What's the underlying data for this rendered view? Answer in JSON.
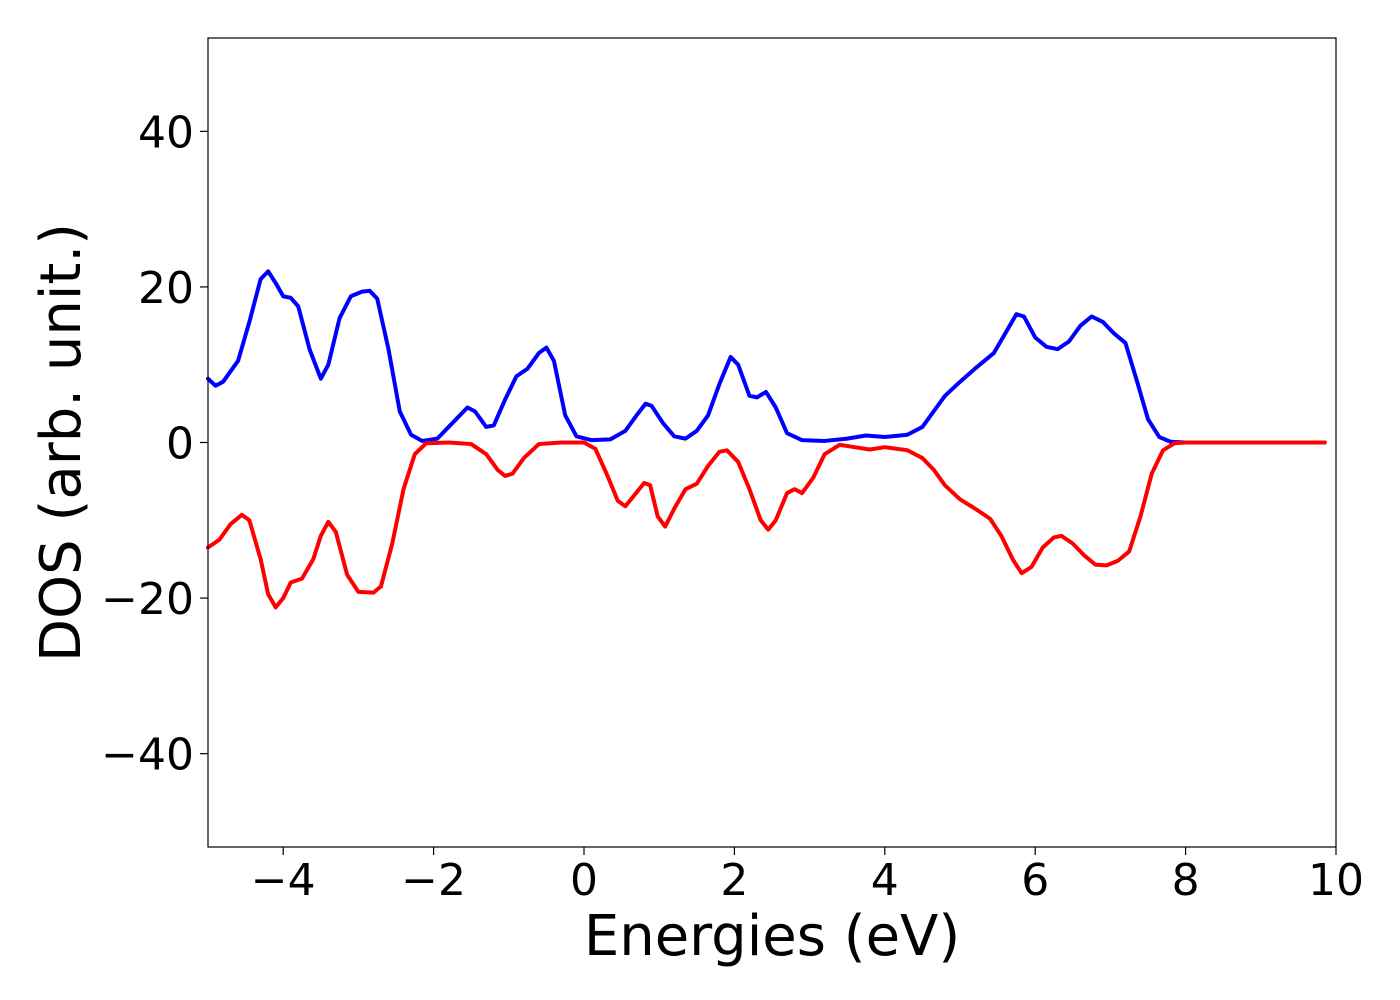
{
  "chart_data": {
    "type": "line",
    "xlabel": "Energies (eV)",
    "ylabel": "DOS (arb. unit.)",
    "xlim": [
      -5,
      10
    ],
    "ylim": [
      -52,
      52
    ],
    "x_ticks": [
      -4,
      -2,
      0,
      2,
      4,
      6,
      8,
      10
    ],
    "y_ticks": [
      -40,
      -20,
      0,
      20,
      40
    ],
    "x_tick_labels": [
      "−4",
      "−2",
      "0",
      "2",
      "4",
      "6",
      "8",
      "10"
    ],
    "y_tick_labels": [
      "−40",
      "−20",
      "0",
      "20",
      "40"
    ],
    "grid": false,
    "legend": "none",
    "series": [
      {
        "color": "#0000ff",
        "points": [
          [
            -5.0,
            8.2
          ],
          [
            -4.9,
            7.3
          ],
          [
            -4.8,
            7.8
          ],
          [
            -4.6,
            10.5
          ],
          [
            -4.45,
            15.5
          ],
          [
            -4.3,
            21.0
          ],
          [
            -4.2,
            22.0
          ],
          [
            -4.1,
            20.5
          ],
          [
            -4.0,
            18.8
          ],
          [
            -3.9,
            18.6
          ],
          [
            -3.8,
            17.5
          ],
          [
            -3.65,
            12.0
          ],
          [
            -3.5,
            8.2
          ],
          [
            -3.4,
            10.0
          ],
          [
            -3.25,
            16.0
          ],
          [
            -3.1,
            18.8
          ],
          [
            -2.95,
            19.4
          ],
          [
            -2.85,
            19.5
          ],
          [
            -2.75,
            18.5
          ],
          [
            -2.6,
            12.0
          ],
          [
            -2.45,
            4.0
          ],
          [
            -2.3,
            1.0
          ],
          [
            -2.15,
            0.2
          ],
          [
            -1.95,
            0.5
          ],
          [
            -1.75,
            2.5
          ],
          [
            -1.55,
            4.5
          ],
          [
            -1.45,
            4.0
          ],
          [
            -1.3,
            2.0
          ],
          [
            -1.2,
            2.2
          ],
          [
            -1.05,
            5.5
          ],
          [
            -0.9,
            8.5
          ],
          [
            -0.75,
            9.5
          ],
          [
            -0.6,
            11.5
          ],
          [
            -0.5,
            12.2
          ],
          [
            -0.4,
            10.5
          ],
          [
            -0.25,
            3.5
          ],
          [
            -0.1,
            0.8
          ],
          [
            0.1,
            0.3
          ],
          [
            0.35,
            0.4
          ],
          [
            0.55,
            1.5
          ],
          [
            0.7,
            3.5
          ],
          [
            0.82,
            5.0
          ],
          [
            0.9,
            4.7
          ],
          [
            1.05,
            2.5
          ],
          [
            1.2,
            0.8
          ],
          [
            1.35,
            0.5
          ],
          [
            1.5,
            1.5
          ],
          [
            1.65,
            3.5
          ],
          [
            1.8,
            7.5
          ],
          [
            1.95,
            11.0
          ],
          [
            2.05,
            10.0
          ],
          [
            2.2,
            6.0
          ],
          [
            2.3,
            5.8
          ],
          [
            2.42,
            6.5
          ],
          [
            2.55,
            4.5
          ],
          [
            2.7,
            1.2
          ],
          [
            2.9,
            0.3
          ],
          [
            3.2,
            0.2
          ],
          [
            3.5,
            0.5
          ],
          [
            3.75,
            0.9
          ],
          [
            4.0,
            0.7
          ],
          [
            4.3,
            1.0
          ],
          [
            4.5,
            2.0
          ],
          [
            4.65,
            4.0
          ],
          [
            4.8,
            6.0
          ],
          [
            5.0,
            7.8
          ],
          [
            5.2,
            9.5
          ],
          [
            5.45,
            11.5
          ],
          [
            5.6,
            14.0
          ],
          [
            5.75,
            16.5
          ],
          [
            5.85,
            16.2
          ],
          [
            6.0,
            13.5
          ],
          [
            6.15,
            12.3
          ],
          [
            6.3,
            12.0
          ],
          [
            6.45,
            13.0
          ],
          [
            6.6,
            15.0
          ],
          [
            6.75,
            16.2
          ],
          [
            6.9,
            15.5
          ],
          [
            7.05,
            14.0
          ],
          [
            7.2,
            12.8
          ],
          [
            7.35,
            8.0
          ],
          [
            7.5,
            3.0
          ],
          [
            7.65,
            0.7
          ],
          [
            7.8,
            0.1
          ],
          [
            8.0,
            0.0
          ],
          [
            9.0,
            0.0
          ],
          [
            9.85,
            0.0
          ]
        ]
      },
      {
        "color": "#ff0000",
        "points": [
          [
            -5.0,
            -13.5
          ],
          [
            -4.85,
            -12.5
          ],
          [
            -4.7,
            -10.5
          ],
          [
            -4.55,
            -9.3
          ],
          [
            -4.45,
            -10.0
          ],
          [
            -4.3,
            -15.0
          ],
          [
            -4.2,
            -19.5
          ],
          [
            -4.1,
            -21.2
          ],
          [
            -4.0,
            -20.0
          ],
          [
            -3.9,
            -18.0
          ],
          [
            -3.75,
            -17.5
          ],
          [
            -3.6,
            -15.0
          ],
          [
            -3.5,
            -12.0
          ],
          [
            -3.4,
            -10.2
          ],
          [
            -3.3,
            -11.5
          ],
          [
            -3.15,
            -17.0
          ],
          [
            -3.0,
            -19.2
          ],
          [
            -2.8,
            -19.3
          ],
          [
            -2.7,
            -18.5
          ],
          [
            -2.55,
            -13.0
          ],
          [
            -2.4,
            -6.0
          ],
          [
            -2.25,
            -1.5
          ],
          [
            -2.1,
            -0.1
          ],
          [
            -1.8,
            0.0
          ],
          [
            -1.5,
            -0.2
          ],
          [
            -1.3,
            -1.5
          ],
          [
            -1.15,
            -3.5
          ],
          [
            -1.05,
            -4.3
          ],
          [
            -0.95,
            -4.0
          ],
          [
            -0.8,
            -2.0
          ],
          [
            -0.6,
            -0.2
          ],
          [
            -0.3,
            0.0
          ],
          [
            0.0,
            0.0
          ],
          [
            0.15,
            -0.8
          ],
          [
            0.3,
            -4.0
          ],
          [
            0.45,
            -7.5
          ],
          [
            0.55,
            -8.2
          ],
          [
            0.65,
            -7.0
          ],
          [
            0.8,
            -5.2
          ],
          [
            0.88,
            -5.5
          ],
          [
            0.98,
            -9.5
          ],
          [
            1.08,
            -10.8
          ],
          [
            1.2,
            -8.5
          ],
          [
            1.35,
            -6.0
          ],
          [
            1.5,
            -5.3
          ],
          [
            1.65,
            -3.0
          ],
          [
            1.8,
            -1.2
          ],
          [
            1.9,
            -1.0
          ],
          [
            2.05,
            -2.5
          ],
          [
            2.2,
            -6.0
          ],
          [
            2.35,
            -10.0
          ],
          [
            2.45,
            -11.2
          ],
          [
            2.55,
            -10.0
          ],
          [
            2.7,
            -6.5
          ],
          [
            2.8,
            -6.0
          ],
          [
            2.9,
            -6.5
          ],
          [
            3.05,
            -4.5
          ],
          [
            3.2,
            -1.5
          ],
          [
            3.4,
            -0.3
          ],
          [
            3.6,
            -0.6
          ],
          [
            3.8,
            -0.9
          ],
          [
            4.0,
            -0.6
          ],
          [
            4.3,
            -1.0
          ],
          [
            4.5,
            -2.0
          ],
          [
            4.65,
            -3.5
          ],
          [
            4.8,
            -5.5
          ],
          [
            5.0,
            -7.3
          ],
          [
            5.2,
            -8.5
          ],
          [
            5.4,
            -9.8
          ],
          [
            5.55,
            -12.0
          ],
          [
            5.7,
            -15.0
          ],
          [
            5.82,
            -16.8
          ],
          [
            5.95,
            -16.0
          ],
          [
            6.1,
            -13.5
          ],
          [
            6.25,
            -12.2
          ],
          [
            6.35,
            -12.0
          ],
          [
            6.5,
            -13.0
          ],
          [
            6.65,
            -14.5
          ],
          [
            6.8,
            -15.7
          ],
          [
            6.95,
            -15.8
          ],
          [
            7.1,
            -15.2
          ],
          [
            7.25,
            -14.0
          ],
          [
            7.4,
            -9.5
          ],
          [
            7.55,
            -4.0
          ],
          [
            7.7,
            -1.0
          ],
          [
            7.85,
            -0.1
          ],
          [
            8.0,
            0.0
          ],
          [
            9.0,
            0.0
          ],
          [
            9.85,
            0.0
          ]
        ]
      }
    ]
  }
}
